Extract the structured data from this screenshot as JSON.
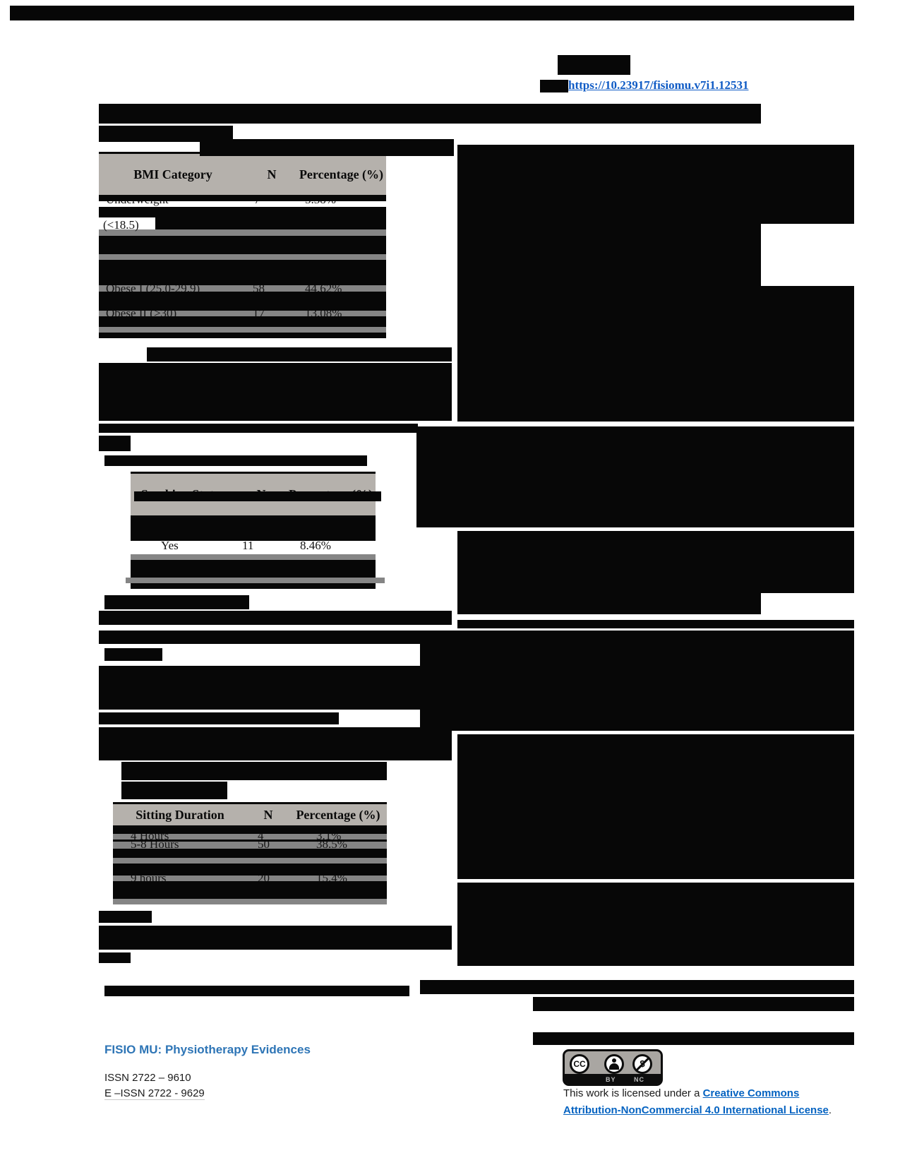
{
  "header": {
    "doi_link_text": "https://10.23917/fisiomu.v7i1.12531"
  },
  "tables": {
    "bmi": {
      "headers": [
        "BMI Category",
        "N",
        "Percentage (%)"
      ],
      "rows_visible": {
        "row1_label": "Underweight",
        "row1_n": "7",
        "row1_pct": "5.38%",
        "row1_wrap": "(<18.5)",
        "row4_label": "Obese I (25.0-29.9)",
        "row4_n": "58",
        "row4_pct": "44.62%",
        "row5_label": "Obese II (>30)",
        "row5_n": "17",
        "row5_pct": "13.08%"
      }
    },
    "smoking": {
      "headers": [
        "Smoking Status",
        "N",
        "Percentage (%)"
      ],
      "rows_visible": {
        "row1_label": "Yes",
        "row1_n": "11",
        "row1_pct": "8.46%"
      }
    },
    "sitting": {
      "headers": [
        "Sitting Duration",
        "N",
        "Percentage (%)"
      ],
      "rows_visible": {
        "row1_label": "4 Hours",
        "row1_n": "4",
        "row1_pct": "3.1%",
        "row2_label": "5-8 Hours",
        "row2_n": "50",
        "row2_pct": "38.5%",
        "row3_label": "9 hours",
        "row3_n": "20",
        "row3_pct": "15.4%"
      }
    }
  },
  "footer": {
    "journal": "FISIO MU: Physiotherapy Evidences",
    "issn": "ISSN 2722 – 9610",
    "eissn": "E –ISSN 2722 - 9629",
    "license_prefix": "This work is licensed under a ",
    "license_link": "Creative Commons Attribution-NonCommercial 4.0 International License",
    "license_suffix": ".",
    "cc_logo": "CC",
    "cc_by": "BY",
    "cc_nc": "NC"
  },
  "colors": {
    "table_header_bg": "#b5b1ac",
    "separator_gray": "#858585",
    "doi_blue": "#0f5bc5",
    "journal_blue": "#2e75b6",
    "license_blue": "#0563c1",
    "redaction_black": "#070707"
  }
}
